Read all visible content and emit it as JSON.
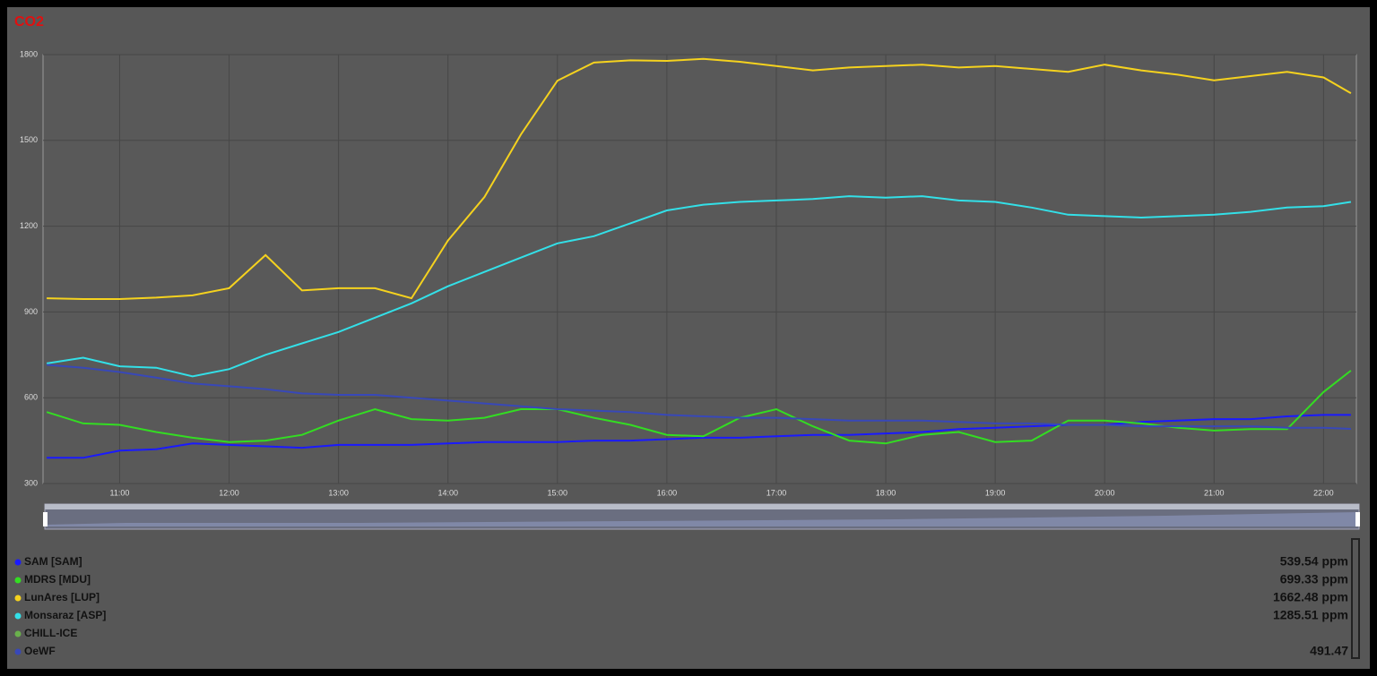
{
  "chart_data": {
    "type": "line",
    "title": "CO2",
    "x": [
      "10:20",
      "10:40",
      "11:00",
      "11:20",
      "11:40",
      "12:00",
      "12:20",
      "12:40",
      "13:00",
      "13:20",
      "13:40",
      "14:00",
      "14:20",
      "14:40",
      "15:00",
      "15:20",
      "15:40",
      "16:00",
      "16:20",
      "16:40",
      "17:00",
      "17:20",
      "17:40",
      "18:00",
      "18:20",
      "18:40",
      "19:00",
      "19:20",
      "19:40",
      "20:00",
      "20:20",
      "20:40",
      "21:00",
      "21:20",
      "21:40",
      "22:00",
      "22:15"
    ],
    "xlim": [
      "10:18",
      "22:18"
    ],
    "xticks": [
      "11:00",
      "12:00",
      "13:00",
      "14:00",
      "15:00",
      "16:00",
      "17:00",
      "18:00",
      "19:00",
      "20:00",
      "21:00",
      "22:00"
    ],
    "ylim": [
      300,
      1800
    ],
    "yticks": [
      300,
      600,
      900,
      1200,
      1500,
      1800
    ],
    "grid": true,
    "series": [
      {
        "name": "SAM [SAM]",
        "color": "#1a1aff",
        "latest": "539.54 ppm",
        "values": [
          390,
          390,
          415,
          420,
          440,
          435,
          430,
          425,
          435,
          435,
          435,
          440,
          445,
          445,
          445,
          450,
          450,
          455,
          460,
          460,
          465,
          470,
          470,
          475,
          480,
          490,
          495,
          500,
          505,
          505,
          515,
          520,
          525,
          525,
          535,
          540,
          540
        ]
      },
      {
        "name": "MDRS [MDU]",
        "color": "#33dd22",
        "latest": "699.33 ppm",
        "values": [
          550,
          510,
          505,
          480,
          460,
          445,
          450,
          470,
          520,
          560,
          525,
          520,
          530,
          560,
          560,
          530,
          505,
          470,
          465,
          530,
          560,
          500,
          450,
          440,
          470,
          480,
          445,
          450,
          520,
          520,
          510,
          495,
          485,
          490,
          490,
          620,
          695
        ]
      },
      {
        "name": "LunAres [LUP]",
        "color": "#f5d21e",
        "latest": "1662.48 ppm",
        "values": [
          948,
          945,
          945,
          950,
          958,
          983,
          1099,
          975,
          983,
          983,
          948,
          1150,
          1302,
          1521,
          1709,
          1772,
          1780,
          1778,
          1785,
          1775,
          1760,
          1745,
          1755,
          1760,
          1765,
          1755,
          1760,
          1750,
          1740,
          1765,
          1745,
          1730,
          1710,
          1725,
          1740,
          1720,
          1665
        ]
      },
      {
        "name": "Monsaraz [ASP]",
        "color": "#33e0e8",
        "latest": "1285.51 ppm",
        "values": [
          720,
          740,
          710,
          705,
          675,
          700,
          750,
          790,
          830,
          880,
          930,
          990,
          1040,
          1090,
          1140,
          1165,
          1210,
          1255,
          1275,
          1285,
          1290,
          1295,
          1305,
          1300,
          1305,
          1290,
          1285,
          1265,
          1240,
          1235,
          1230,
          1235,
          1240,
          1250,
          1265,
          1270,
          1285
        ]
      },
      {
        "name": "CHILL-ICE",
        "color": "#6ab04c",
        "values": [
          null,
          null,
          null,
          null,
          null,
          null,
          null,
          null,
          null,
          null,
          null,
          null,
          null,
          null,
          null,
          null,
          null,
          null,
          null,
          null,
          null,
          null,
          null,
          null,
          null,
          null,
          null,
          null,
          null,
          null,
          null,
          null,
          null,
          null,
          null,
          null,
          null
        ]
      },
      {
        "name": "OeWF",
        "color": "#3848b8",
        "latest": "491.47",
        "values": [
          715,
          705,
          690,
          670,
          650,
          640,
          630,
          615,
          610,
          610,
          600,
          590,
          580,
          570,
          560,
          555,
          550,
          540,
          535,
          530,
          530,
          525,
          520,
          520,
          520,
          515,
          510,
          510,
          505,
          505,
          500,
          500,
          500,
          500,
          495,
          495,
          491
        ]
      }
    ]
  }
}
